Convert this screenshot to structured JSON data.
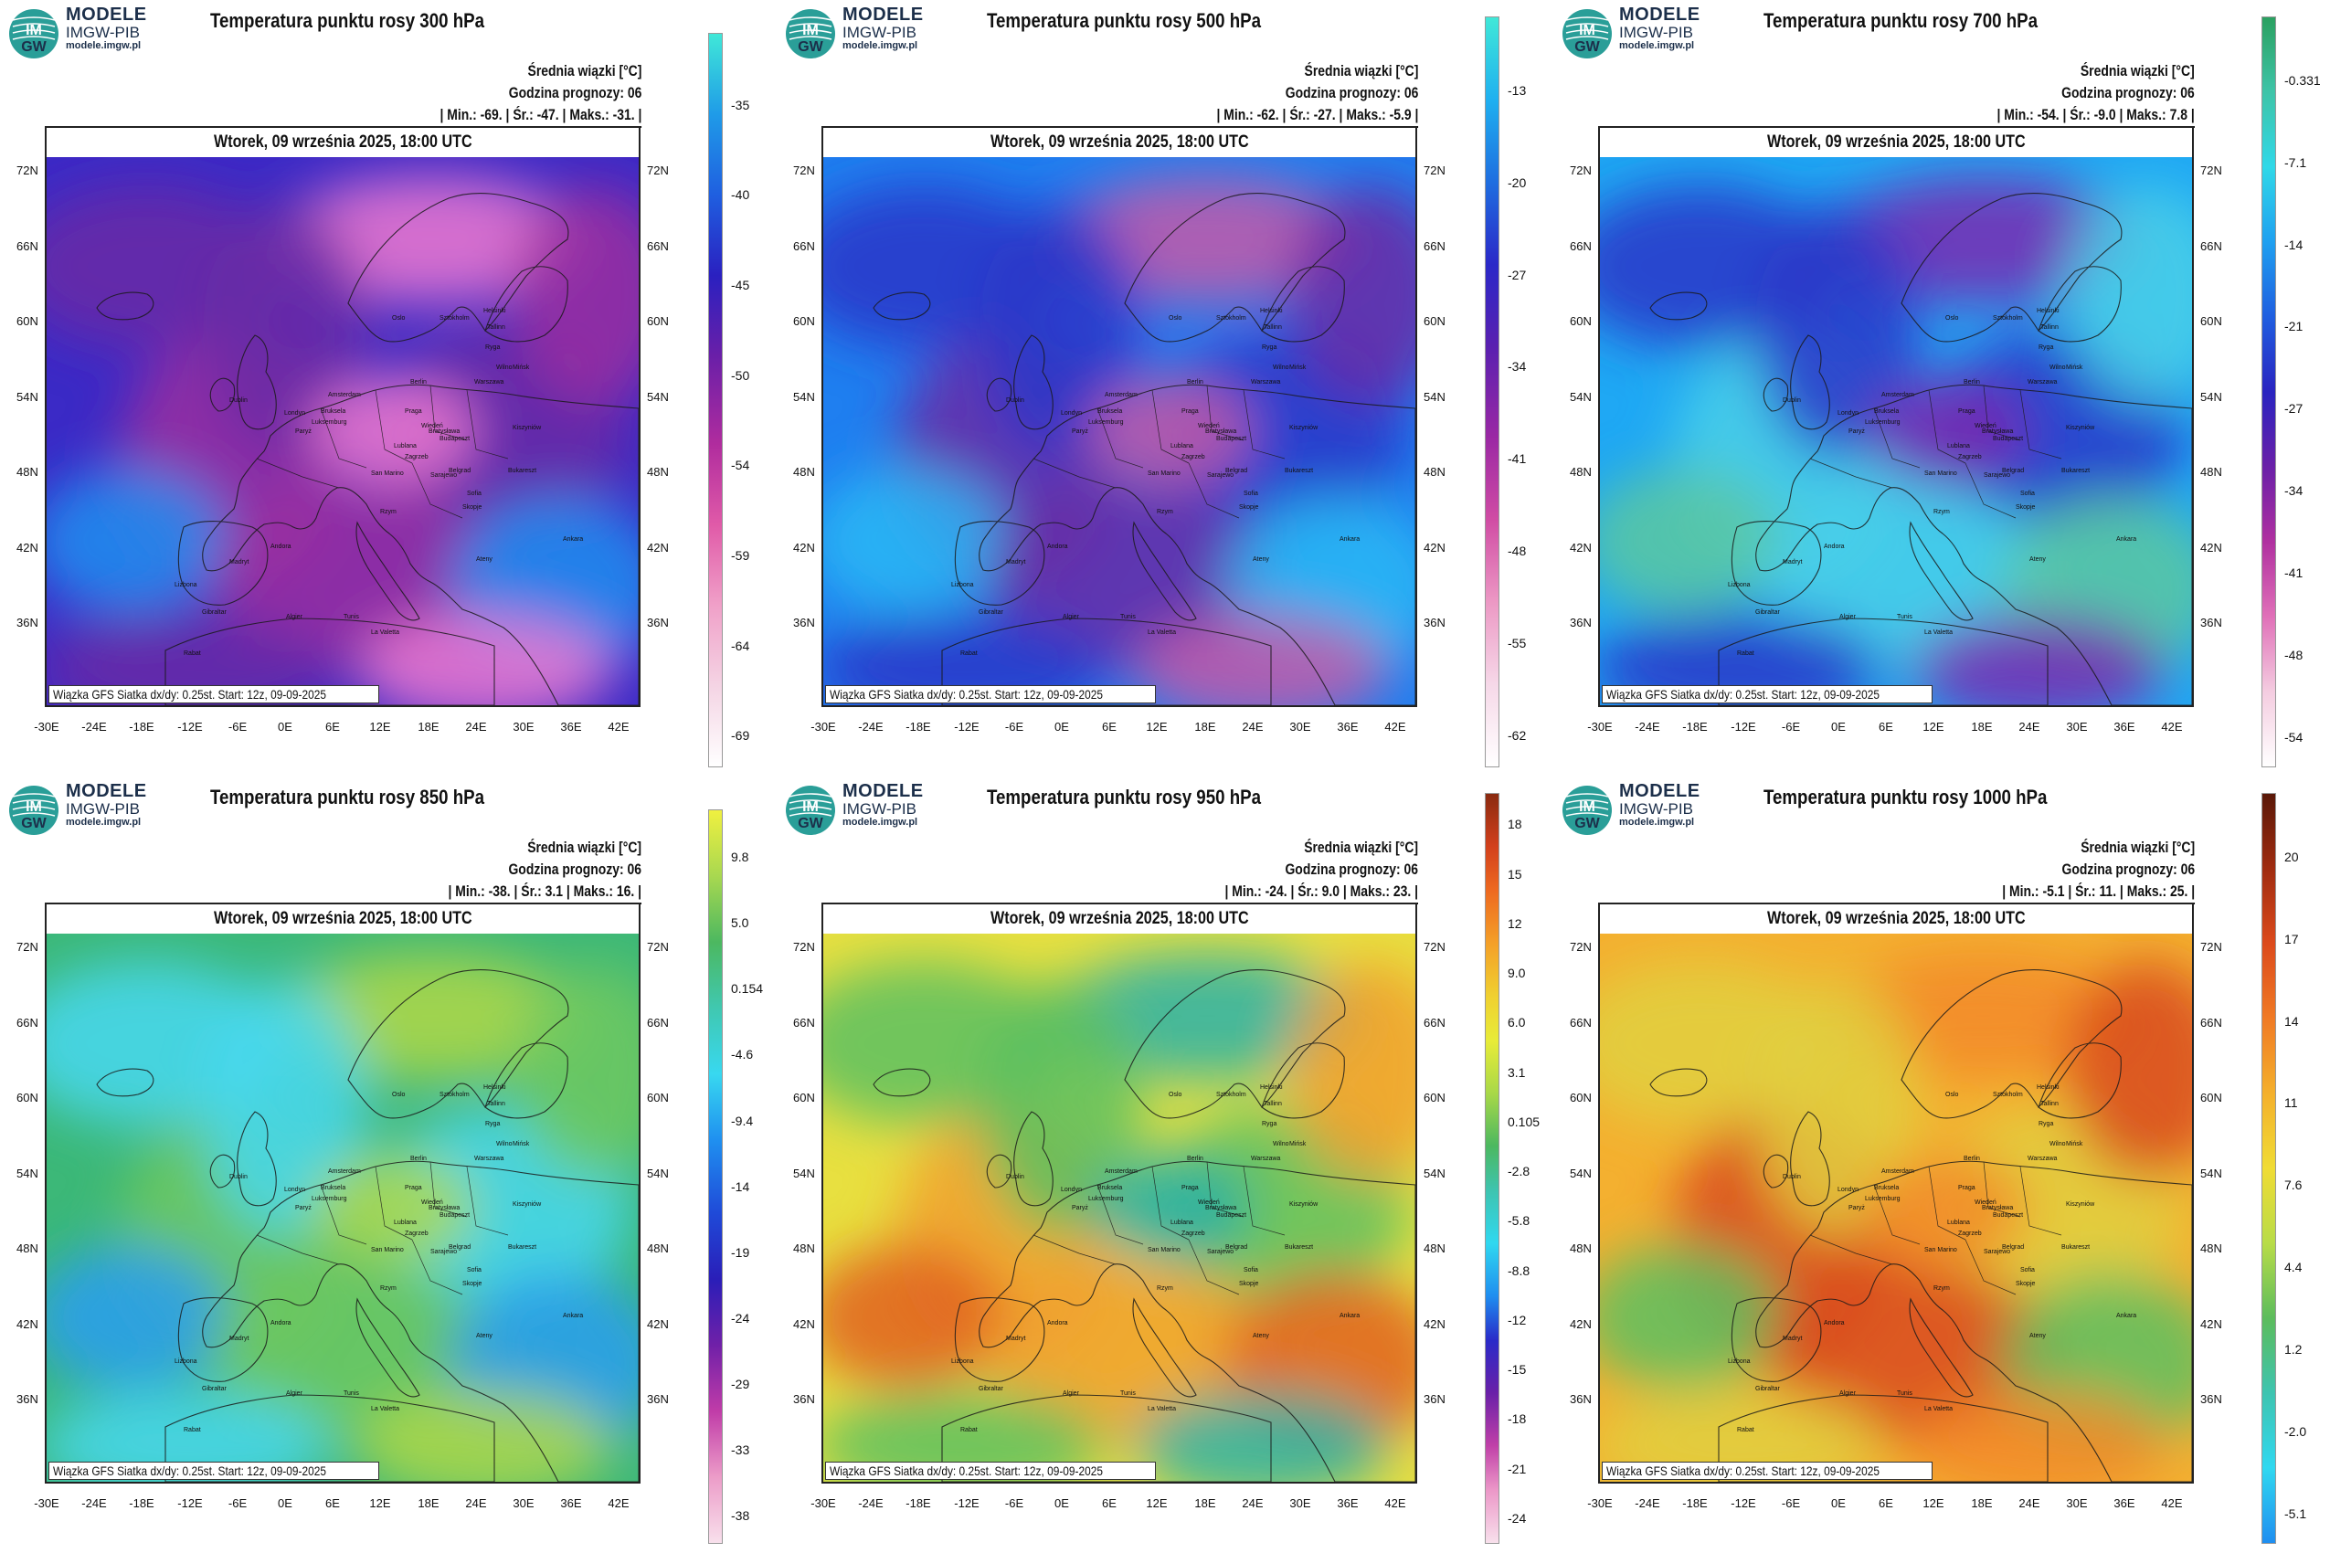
{
  "org": {
    "name": "MODELE",
    "sub": "IMGW-PIB",
    "url": "modele.imgw.pl",
    "logo_text_1": "IM",
    "logo_text_2": "GW"
  },
  "date": "Wtorek, 09 września 2025, 18:00 UTC",
  "srednia": "Średnia wiązki [°C]",
  "godzina": "Godzina prognozy: 06",
  "credit": "Wiązka GFS Siatka dx/dy: 0.25st. Start: 12z, 09-09-2025",
  "lat_labels_left": [
    "72N",
    "66N",
    "60N",
    "54N",
    "48N",
    "42N",
    "36N"
  ],
  "lat_labels_right": [
    "72N",
    "66N",
    "60N",
    "54N",
    "48N",
    "42N",
    "36N"
  ],
  "lon_labels": [
    "-30E",
    "-24E",
    "-18E",
    "-12E",
    "-6E",
    "0E",
    "6E",
    "12E",
    "18E",
    "24E",
    "30E",
    "36E",
    "42E"
  ],
  "cities": [
    "Oslo",
    "Helsinki",
    "Sztokholm",
    "Tallinn",
    "Ryga",
    "Wilno",
    "Mińsk",
    "Warszawa",
    "Berlin",
    "Amsterdam",
    "Bruksela",
    "Londyn",
    "Dublin",
    "Paryż",
    "Luksemburg",
    "Praga",
    "Wiedeń",
    "Bratysława",
    "Budapeszt",
    "Kiszyniów",
    "Lublana",
    "Zagrzeb",
    "Belgrad",
    "Sarajewo",
    "Bukareszt",
    "Sofia",
    "Skopje",
    "San Marino",
    "Rzym",
    "Madryt",
    "Lizbona",
    "Andora",
    "Algier",
    "Tunis",
    "La Valetta",
    "Ateny",
    "Ankara",
    "Rabat",
    "Gibraltar"
  ],
  "panels": [
    {
      "level": "300 hPa",
      "title": "Temperatura punktu rosy 300 hPa",
      "stats": "| Min.:   -69. | Śr.:   -47. | Maks.:   -31. |",
      "colorbar_labels": [
        "-35",
        "-40",
        "-45",
        "-50",
        "-54",
        "-59",
        "-64",
        "-69"
      ],
      "colorbar_colors": [
        "#40e8d8",
        "#1f9be8",
        "#1f5fe0",
        "#2a20c0",
        "#6a1fa8",
        "#b02c9e",
        "#e05aa8",
        "#f0a0c8",
        "#f4d4e4",
        "#ffffff"
      ],
      "map_colors": [
        "#3b2ac6",
        "#6a2aa6",
        "#9b2fa0",
        "#1f8ff0",
        "#ee7ad0"
      ]
    },
    {
      "level": "500 hPa",
      "title": "Temperatura punktu rosy 500 hPa",
      "stats": "| Min.:   -62. | Śr.:   -27. | Maks.:   -5.9 |",
      "colorbar_labels": [
        "-13",
        "-20",
        "-27",
        "-34",
        "-41",
        "-48",
        "-55",
        "-62"
      ],
      "colorbar_colors": [
        "#40e8d8",
        "#1fb0f0",
        "#1f6ee0",
        "#2a28c8",
        "#5a20b0",
        "#9a28a4",
        "#d04ca4",
        "#ec98c4",
        "#f6d8e8",
        "#ffffff"
      ],
      "map_colors": [
        "#1f7ff0",
        "#2a36c8",
        "#6a2aa6",
        "#29b8f4",
        "#c45aa8"
      ]
    },
    {
      "level": "700 hPa",
      "title": "Temperatura punktu rosy 700 hPa",
      "stats": "| Min.:   -54. | Śr.:   -9.0 | Maks.:   7.8 |",
      "colorbar_labels": [
        "-0.331",
        "-7.1",
        "-14",
        "-21",
        "-27",
        "-34",
        "-41",
        "-48",
        "-54"
      ],
      "colorbar_colors": [
        "#2aa060",
        "#3ec4a8",
        "#30d8e8",
        "#1fa0f0",
        "#1f5ee0",
        "#2a24c0",
        "#6a20a8",
        "#b030a0",
        "#e070b8",
        "#f4cce0",
        "#ffffff"
      ],
      "map_colors": [
        "#1fa8f4",
        "#2a36c8",
        "#4ad0e8",
        "#5cc8a0",
        "#7a2ab0"
      ]
    },
    {
      "level": "850 hPa",
      "title": "Temperatura punktu rosy 850 hPa",
      "stats": "| Min.:   -38. | Śr.:   3.1 | Maks.:   16. |",
      "colorbar_labels": [
        "9.8",
        "5.0",
        "0.154",
        "-4.6",
        "-9.4",
        "-14",
        "-19",
        "-24",
        "-29",
        "-33",
        "-38"
      ],
      "colorbar_colors": [
        "#f0f040",
        "#a8d850",
        "#4cb860",
        "#40c8b0",
        "#38d8f0",
        "#1f90f0",
        "#1f4ad8",
        "#2a1eb8",
        "#7020a8",
        "#c03ca8",
        "#ec9cc8",
        "#f8e0ec"
      ],
      "map_colors": [
        "#3cb878",
        "#48d8f0",
        "#6ec860",
        "#2a9ef0",
        "#b0d848"
      ]
    },
    {
      "level": "950 hPa",
      "title": "Temperatura punktu rosy 950 hPa",
      "stats": "| Min.:   -24. | Śr.:   9.0 | Maks.:   23. |",
      "colorbar_labels": [
        "18",
        "15",
        "12",
        "9.0",
        "6.0",
        "3.1",
        "0.105",
        "-2.8",
        "-5.8",
        "-8.8",
        "-12",
        "-15",
        "-18",
        "-21",
        "-24"
      ],
      "colorbar_colors": [
        "#8a2a10",
        "#d2401c",
        "#ee6a20",
        "#f4a028",
        "#f0d030",
        "#e8ec38",
        "#a8d848",
        "#4cb860",
        "#3ec4b0",
        "#30d8f0",
        "#1f8ef0",
        "#2a2ac8",
        "#6a20a8",
        "#c040a8",
        "#ec98c8",
        "#f8e0ec"
      ],
      "map_colors": [
        "#e8e040",
        "#5cc060",
        "#f0a030",
        "#e06020",
        "#2ab0a8"
      ]
    },
    {
      "level": "1000 hPa",
      "title": "Temperatura punktu rosy 1000 hPa",
      "stats": "| Min.:   -5.1 | Śr.:   11. | Maks.:   25. |",
      "colorbar_labels": [
        "20",
        "17",
        "14",
        "11",
        "7.6",
        "4.4",
        "1.2",
        "-2.0",
        "-5.1"
      ],
      "colorbar_colors": [
        "#5a1808",
        "#a02c10",
        "#dc4a1c",
        "#f07a24",
        "#f4b02c",
        "#f0dc34",
        "#b8dc48",
        "#5cbc5c",
        "#3ec4b0",
        "#30d8f0",
        "#1f8ef0"
      ],
      "map_colors": [
        "#f4b030",
        "#e0d040",
        "#d84a1c",
        "#5cc060",
        "#f28a28"
      ]
    }
  ]
}
